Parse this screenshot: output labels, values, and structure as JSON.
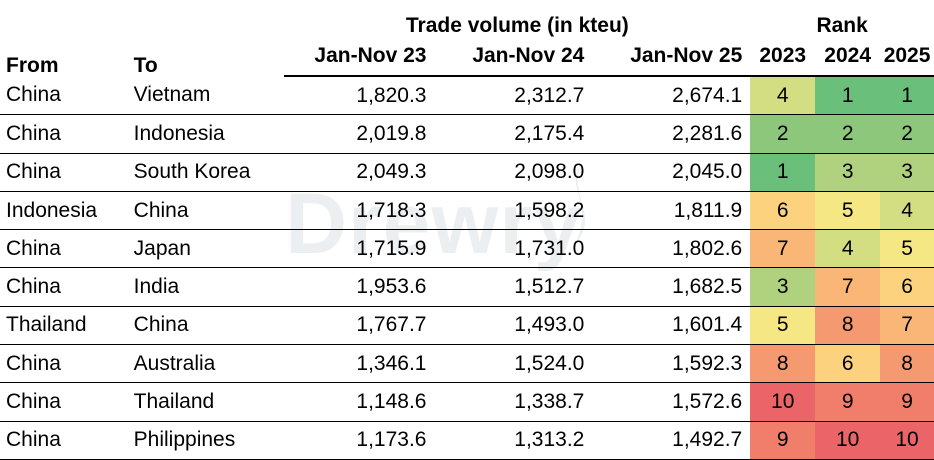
{
  "header": {
    "from": "From",
    "to": "To",
    "volume_group": "Trade volume (in kteu)",
    "rank_group": "Rank",
    "volume_periods": [
      "Jan-Nov 23",
      "Jan-Nov 24",
      "Jan-Nov 25"
    ],
    "rank_years": [
      "2023",
      "2024",
      "2025"
    ]
  },
  "watermark": "Drewry",
  "chart_data": {
    "type": "table",
    "columns": [
      "From",
      "To",
      "Jan-Nov 23",
      "Jan-Nov 24",
      "Jan-Nov 25",
      "2023",
      "2024",
      "2025"
    ],
    "rows": [
      {
        "from": "China",
        "to": "Vietnam",
        "volume": [
          "1,820.3",
          "2,312.7",
          "2,674.1"
        ],
        "rank": [
          4,
          1,
          1
        ]
      },
      {
        "from": "China",
        "to": "Indonesia",
        "volume": [
          "2,019.8",
          "2,175.4",
          "2,281.6"
        ],
        "rank": [
          2,
          2,
          2
        ]
      },
      {
        "from": "China",
        "to": "South Korea",
        "volume": [
          "2,049.3",
          "2,098.0",
          "2,045.0"
        ],
        "rank": [
          1,
          3,
          3
        ]
      },
      {
        "from": "Indonesia",
        "to": "China",
        "volume": [
          "1,718.3",
          "1,598.2",
          "1,811.9"
        ],
        "rank": [
          6,
          5,
          4
        ]
      },
      {
        "from": "China",
        "to": "Japan",
        "volume": [
          "1,715.9",
          "1,731.0",
          "1,802.6"
        ],
        "rank": [
          7,
          4,
          5
        ]
      },
      {
        "from": "China",
        "to": "India",
        "volume": [
          "1,953.6",
          "1,512.7",
          "1,682.5"
        ],
        "rank": [
          3,
          7,
          6
        ]
      },
      {
        "from": "Thailand",
        "to": "China",
        "volume": [
          "1,767.7",
          "1,493.0",
          "1,601.4"
        ],
        "rank": [
          5,
          8,
          7
        ]
      },
      {
        "from": "China",
        "to": "Australia",
        "volume": [
          "1,346.1",
          "1,524.0",
          "1,592.3"
        ],
        "rank": [
          8,
          6,
          8
        ]
      },
      {
        "from": "China",
        "to": "Thailand",
        "volume": [
          "1,148.6",
          "1,338.7",
          "1,572.6"
        ],
        "rank": [
          10,
          9,
          9
        ]
      },
      {
        "from": "China",
        "to": "Philippines",
        "volume": [
          "1,173.6",
          "1,313.2",
          "1,492.7"
        ],
        "rank": [
          9,
          10,
          10
        ]
      }
    ],
    "rank_color_scale": {
      "1": "#6abf7b",
      "2": "#8dc77c",
      "3": "#b0d27f",
      "4": "#d3dd81",
      "5": "#f5e784",
      "6": "#fcd27f",
      "7": "#f9b677",
      "8": "#f59a70",
      "9": "#f07e6b",
      "10": "#eb6467"
    }
  }
}
